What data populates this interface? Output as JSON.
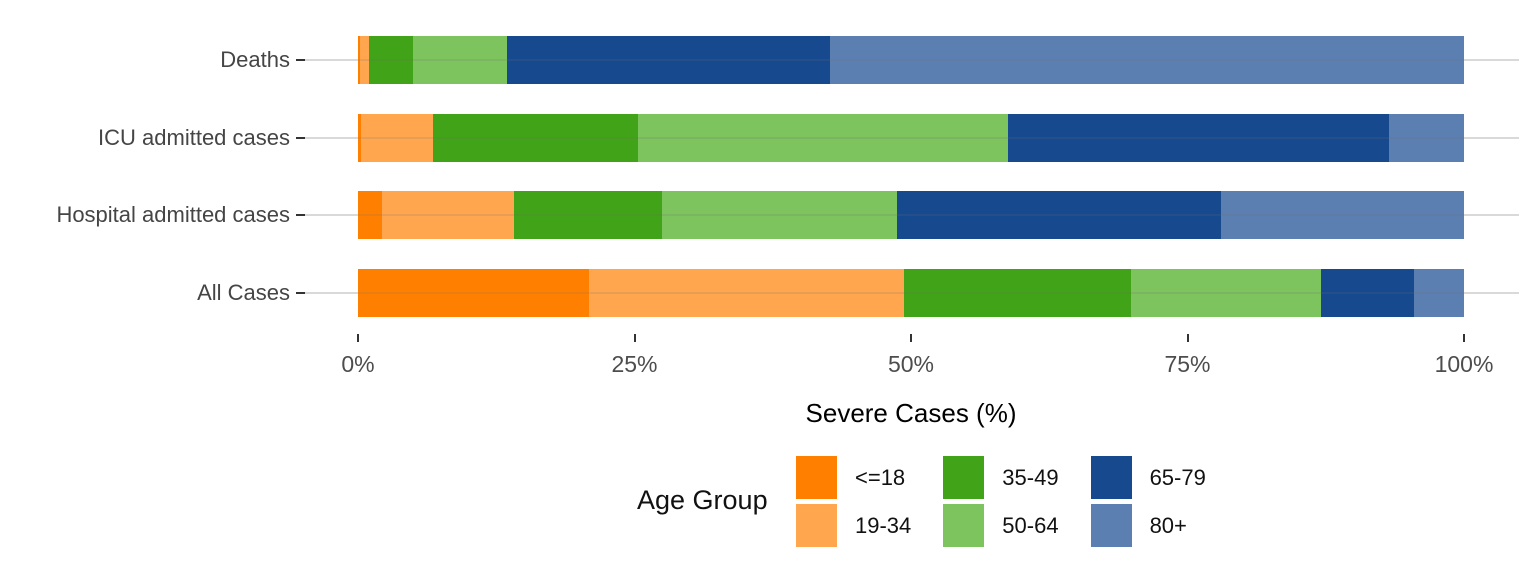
{
  "chart_data": {
    "type": "bar",
    "orientation": "horizontal",
    "stacked": true,
    "unit": "percent",
    "title": "",
    "xlabel": "Severe Cases (%)",
    "ylabel": "",
    "xlim": [
      0,
      100
    ],
    "x_ticks": [
      {
        "value": 0,
        "label": "0%"
      },
      {
        "value": 25,
        "label": "25%"
      },
      {
        "value": 50,
        "label": "50%"
      },
      {
        "value": 75,
        "label": "75%"
      },
      {
        "value": 100,
        "label": "100%"
      }
    ],
    "categories": [
      "Deaths",
      "ICU admitted cases",
      "Hospital admitted cases",
      "All Cases"
    ],
    "series": [
      {
        "name": "<=18",
        "color": "#FF8000",
        "values": [
          0.2,
          0.3,
          2.2,
          20.9
        ]
      },
      {
        "name": "19-34",
        "color": "#FFA64F",
        "values": [
          0.8,
          6.5,
          11.9,
          28.5
        ]
      },
      {
        "name": "35-49",
        "color": "#41A317",
        "values": [
          4.0,
          18.5,
          13.4,
          20.5
        ]
      },
      {
        "name": "50-64",
        "color": "#7DC45F",
        "values": [
          8.5,
          33.5,
          21.2,
          17.2
        ]
      },
      {
        "name": "65-79",
        "color": "#17498F",
        "values": [
          29.2,
          34.4,
          29.3,
          8.4
        ]
      },
      {
        "name": "80+",
        "color": "#5C7FB2",
        "values": [
          57.3,
          6.8,
          22.0,
          4.5
        ]
      }
    ],
    "legend": {
      "title": "Age Group",
      "position": "bottom",
      "rows": 2,
      "columns": 3
    },
    "grid": "horizontal-major-only",
    "style": {
      "gridline_color": "#D9D9D9",
      "axis_text_color": "#4D4D4D",
      "axis_title_color": "#000000",
      "tick_mark_color": "#333333",
      "background": "#FFFFFF"
    }
  }
}
